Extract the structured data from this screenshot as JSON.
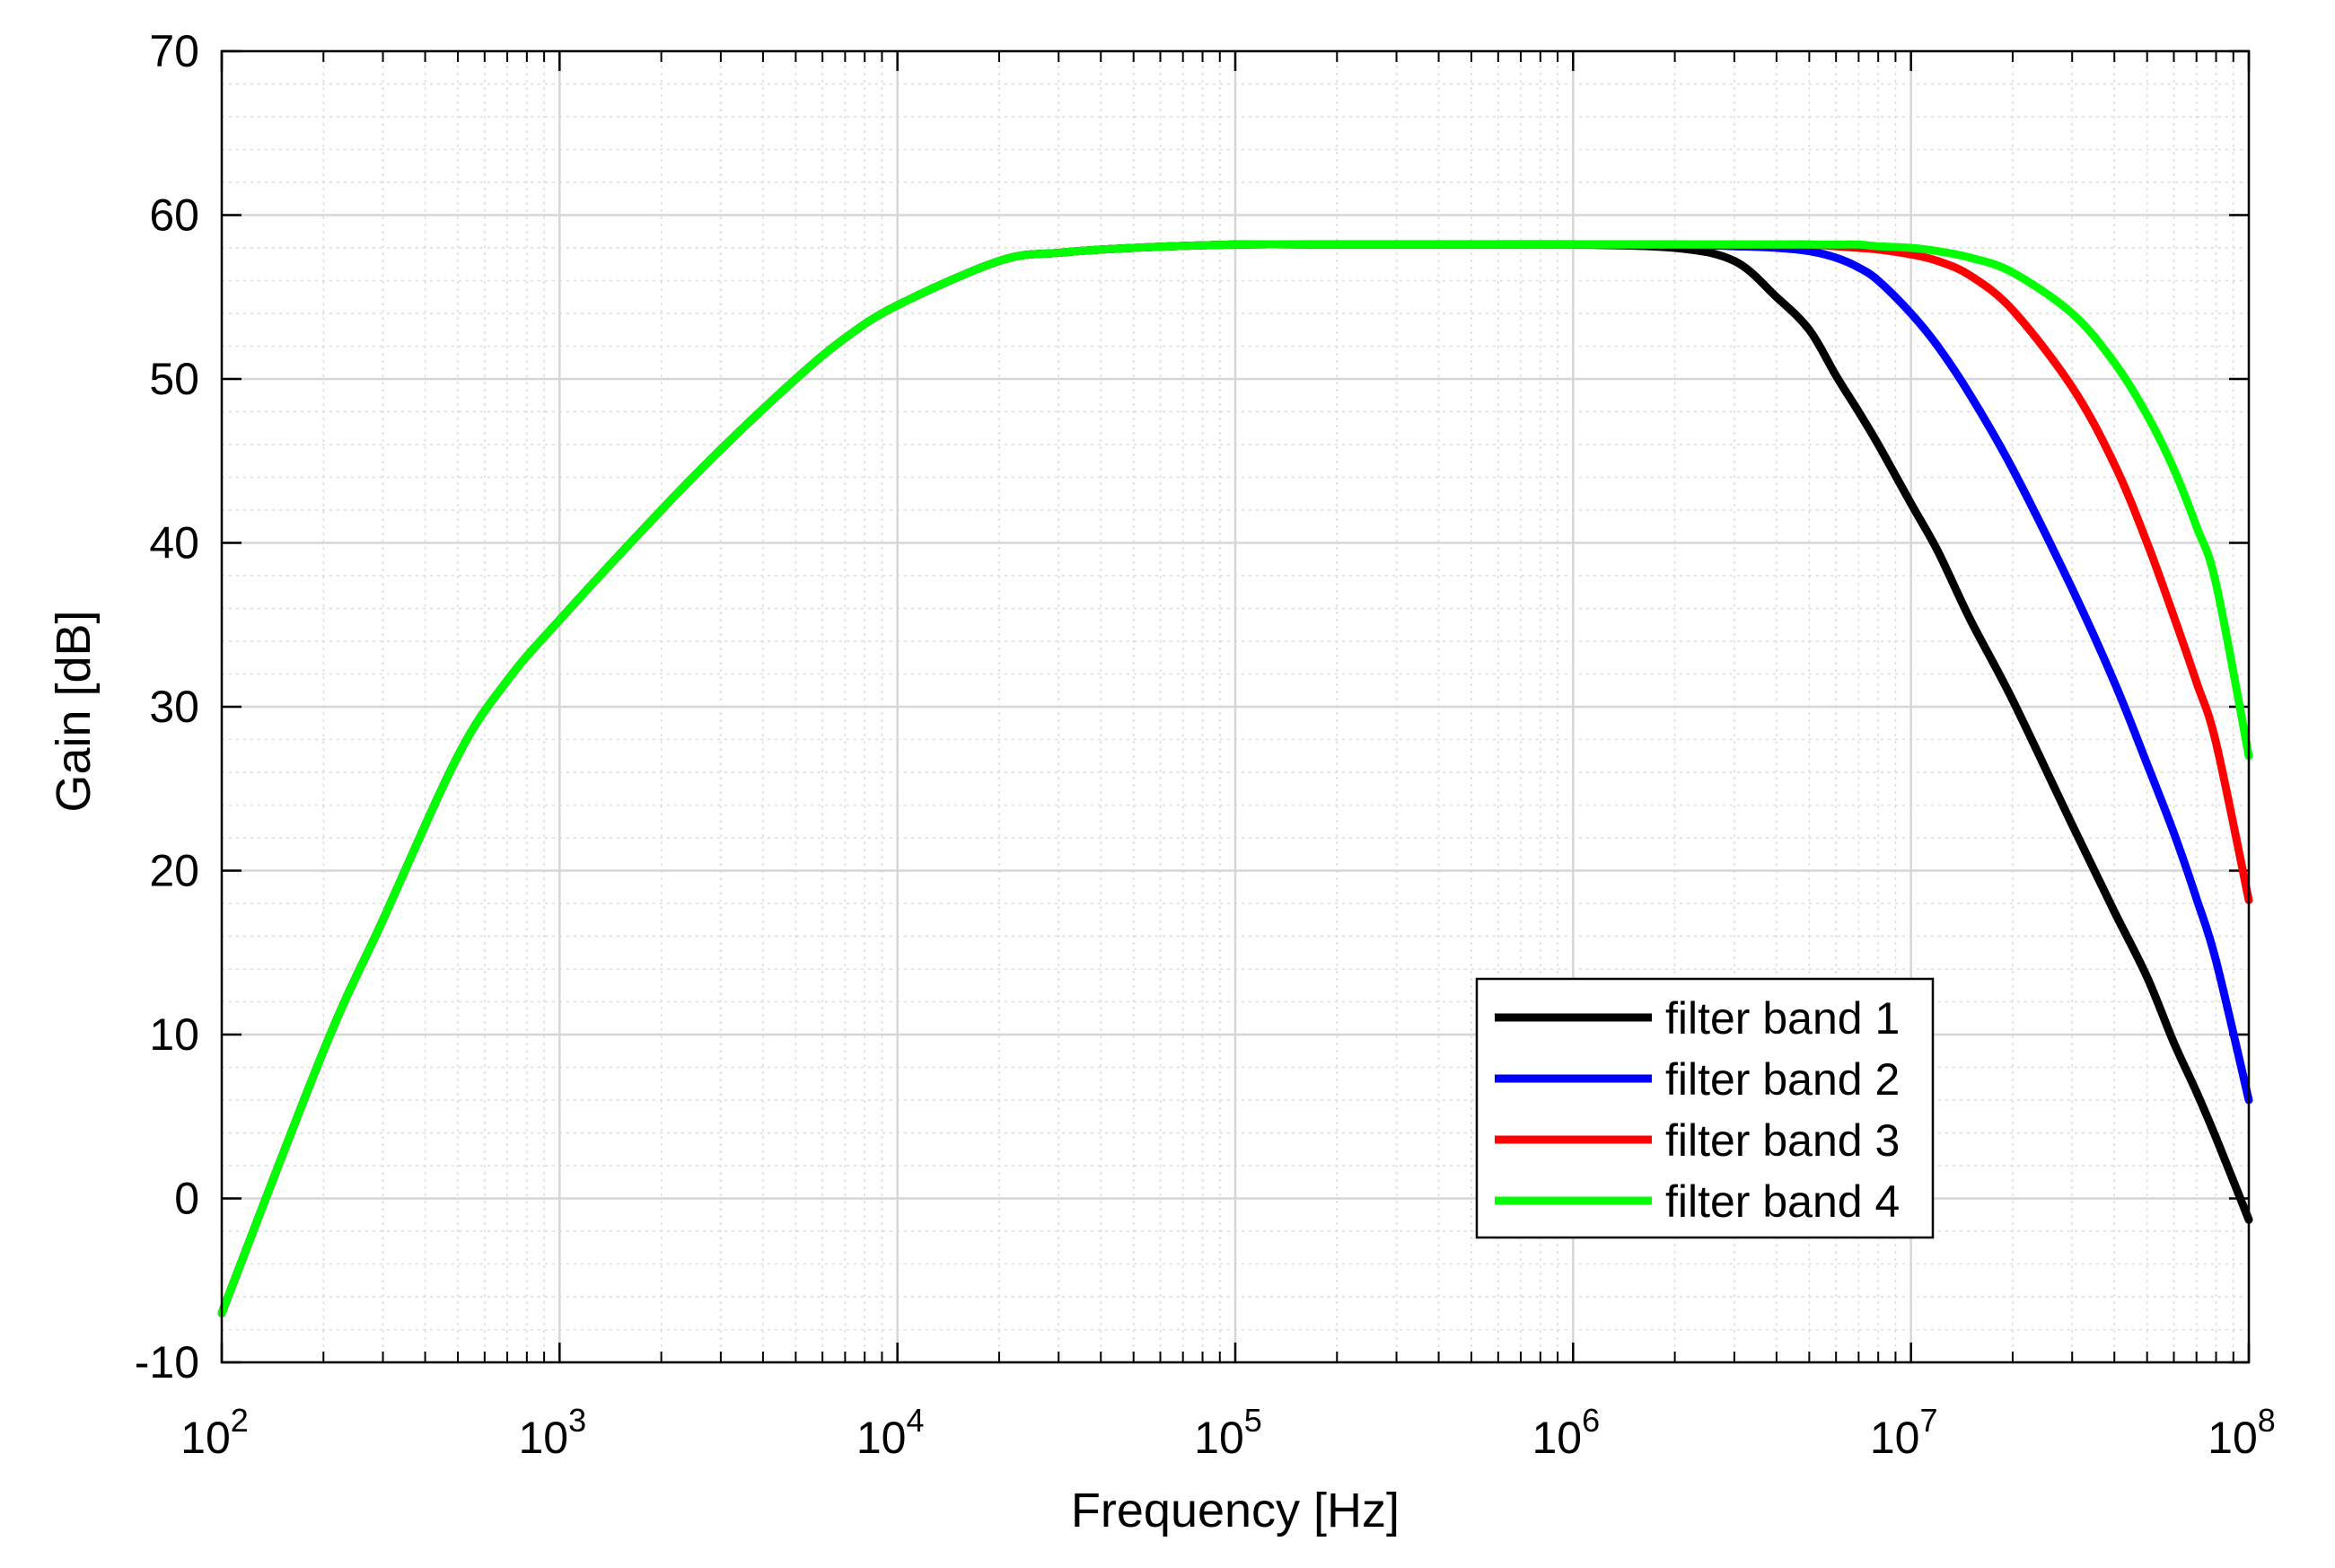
{
  "chart_data": {
    "type": "line",
    "title": "",
    "xlabel": "Frequency [Hz]",
    "ylabel": "Gain [dB]",
    "xscale": "log",
    "xlim": [
      100,
      100000000
    ],
    "ylim": [
      -10,
      70
    ],
    "grid": true,
    "minor_grid": true,
    "legend_position": "bottom-right",
    "x_ticks": [
      {
        "value": 100,
        "base": "10",
        "exp": "2"
      },
      {
        "value": 1000,
        "base": "10",
        "exp": "3"
      },
      {
        "value": 10000,
        "base": "10",
        "exp": "4"
      },
      {
        "value": 100000,
        "base": "10",
        "exp": "5"
      },
      {
        "value": 1000000,
        "base": "10",
        "exp": "6"
      },
      {
        "value": 10000000,
        "base": "10",
        "exp": "7"
      },
      {
        "value": 100000000,
        "base": "10",
        "exp": "8"
      }
    ],
    "y_ticks": [
      {
        "value": -10,
        "label": "-10"
      },
      {
        "value": 0,
        "label": "0"
      },
      {
        "value": 10,
        "label": "10"
      },
      {
        "value": 20,
        "label": "20"
      },
      {
        "value": 30,
        "label": "30"
      },
      {
        "value": 40,
        "label": "40"
      },
      {
        "value": 50,
        "label": "50"
      },
      {
        "value": 60,
        "label": "60"
      },
      {
        "value": 70,
        "label": "70"
      }
    ],
    "x": [
      100,
      200,
      300,
      500,
      700,
      1000,
      2000,
      3000,
      5000,
      7000,
      10000,
      20000,
      30000,
      50000,
      100000,
      200000,
      500000,
      1000000,
      2000000,
      3000000,
      4000000,
      5000000,
      6000000,
      7000000,
      8000000,
      10000000,
      12000000,
      15000000,
      20000000,
      30000000,
      40000000,
      50000000,
      60000000,
      70000000,
      80000000,
      100000000
    ],
    "series": [
      {
        "name": "filter band 1",
        "color": "#000000",
        "values": [
          -7,
          9,
          17,
          27,
          31.6,
          35.3,
          42,
          45.7,
          50,
          52.5,
          54.5,
          57.2,
          57.7,
          58,
          58.2,
          58.2,
          58.2,
          58.2,
          58,
          57.2,
          55,
          53,
          50.2,
          48,
          46,
          42.4,
          39.5,
          35.3,
          30.4,
          22.8,
          17.5,
          13.5,
          9.5,
          6.5,
          3.7,
          -1.3
        ]
      },
      {
        "name": "filter band 2",
        "color": "#0000ff",
        "values": [
          -7,
          9,
          17,
          27,
          31.6,
          35.3,
          42,
          45.7,
          50,
          52.5,
          54.5,
          57.2,
          57.7,
          58,
          58.2,
          58.2,
          58.2,
          58.2,
          58.2,
          58.1,
          58,
          57.8,
          57.4,
          56.8,
          56,
          54,
          52,
          49,
          44.5,
          37.2,
          31.5,
          26.5,
          22.3,
          18.3,
          14.5,
          6
        ]
      },
      {
        "name": "filter band 3",
        "color": "#ff0000",
        "values": [
          -7,
          9,
          17,
          27,
          31.6,
          35.3,
          42,
          45.7,
          50,
          52.5,
          54.5,
          57.2,
          57.7,
          58,
          58.2,
          58.2,
          58.2,
          58.2,
          58.2,
          58.2,
          58.2,
          58.2,
          58.1,
          58,
          57.9,
          57.6,
          57.2,
          56.3,
          54.2,
          49.5,
          44.8,
          40,
          35.5,
          31.5,
          27.8,
          18.2
        ]
      },
      {
        "name": "filter band 4",
        "color": "#00ff00",
        "values": [
          -7,
          9,
          17,
          27,
          31.6,
          35.3,
          42,
          45.7,
          50,
          52.5,
          54.5,
          57.2,
          57.7,
          58,
          58.2,
          58.2,
          58.2,
          58.2,
          58.2,
          58.2,
          58.2,
          58.2,
          58.2,
          58.2,
          58.1,
          58,
          57.8,
          57.4,
          56.5,
          54,
          51,
          47.8,
          44.5,
          41,
          37.5,
          27
        ]
      }
    ]
  }
}
